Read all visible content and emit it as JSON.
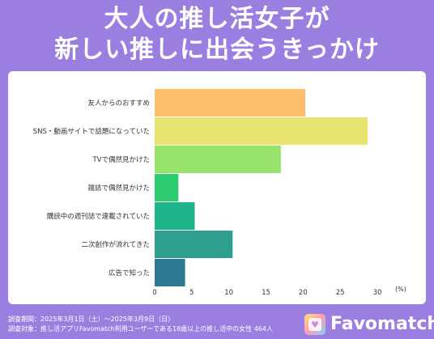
{
  "title": {
    "line1": "大人の推し活女子が",
    "line2": "新しい推しに出会うきっかけ"
  },
  "chart_data": {
    "type": "bar",
    "orientation": "horizontal",
    "categories": [
      "友人からのおすすめ",
      "SNS・動画サイトで話題になっていた",
      "TVで偶然見かけた",
      "雑誌で偶然見かけた",
      "購読中の週刊誌で連載されていた",
      "二次創作が流れてきた",
      "広告で知った"
    ],
    "values": [
      20.3,
      28.7,
      17.0,
      3.2,
      5.4,
      10.5,
      4.1
    ],
    "colors": [
      "#ffbe6b",
      "#e8e470",
      "#96e26a",
      "#2ecc71",
      "#1db489",
      "#2e9e8e",
      "#2c7a92"
    ],
    "xlim": [
      0,
      30
    ],
    "xticks": [
      0,
      5,
      10,
      15,
      20,
      25,
      30
    ],
    "xunit": "(%)",
    "grid": false
  },
  "footer": {
    "period": "調査期間：2025年3月1日（土）〜2025年3月9日（日）",
    "target": "調査対象：推し活アプリFavomatch利用ユーザーである18歳以上の推し活中の女性 464人"
  },
  "logo": {
    "name": "Favomatch",
    "icon": "favomatch-logo-icon"
  }
}
